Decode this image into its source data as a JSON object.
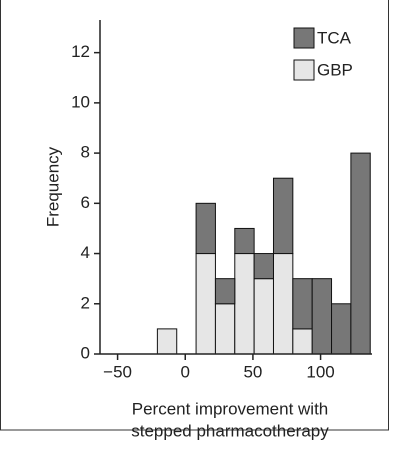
{
  "chart_data": {
    "type": "histogram",
    "xlabel": [
      "Percent improvement with",
      "stepped pharmacotherapy"
    ],
    "ylabel": "Frequency",
    "bins": [
      -20.6,
      -6.3,
      8,
      22.3,
      36.6,
      50.9,
      65.2,
      79.5,
      93.8,
      108.1,
      122.4,
      136.7
    ],
    "series": [
      {
        "name": "GBP",
        "color": "#e6e6e6",
        "values": [
          1,
          0,
          4,
          2,
          4,
          3,
          4,
          1,
          0,
          0,
          0
        ]
      },
      {
        "name": "TCA",
        "color": "#777777",
        "values": [
          0,
          0,
          2,
          1,
          1,
          1,
          3,
          2,
          3,
          2,
          8
        ]
      }
    ],
    "xlim": [
      -63,
      138
    ],
    "xticks": [
      {
        "value": -50,
        "label": "−50"
      },
      0,
      50,
      100
    ],
    "ylim": [
      0,
      13.3
    ],
    "yticks": [
      0,
      2,
      4,
      6,
      8,
      10,
      12
    ],
    "legend": "upper-right"
  }
}
